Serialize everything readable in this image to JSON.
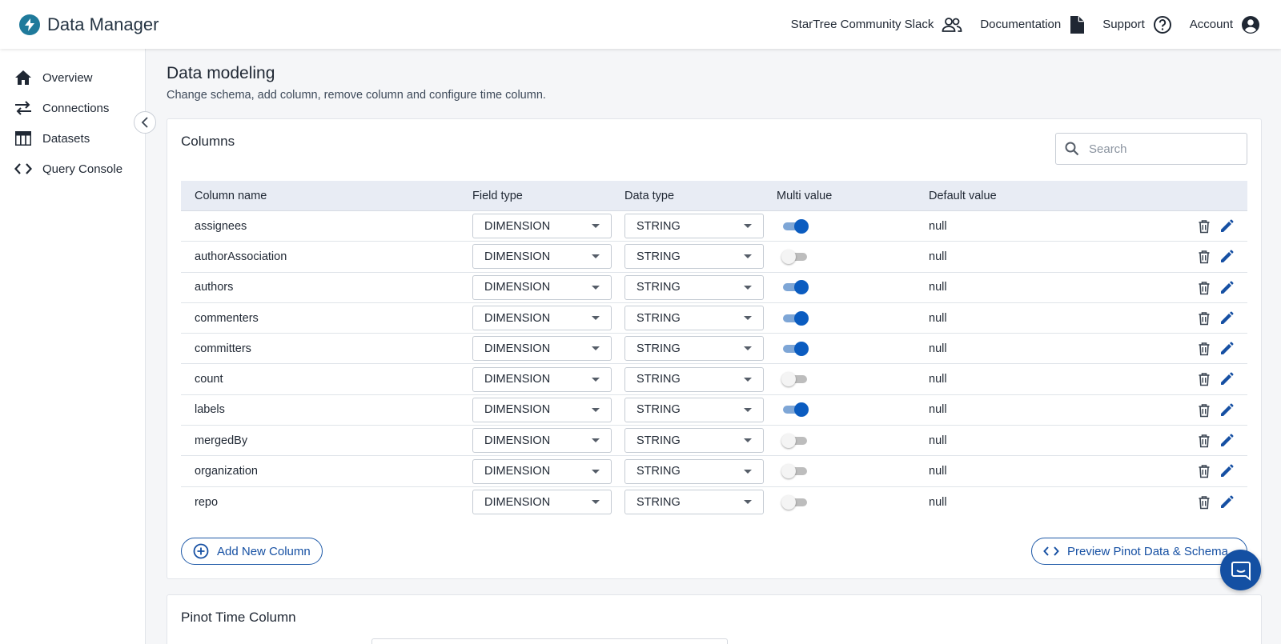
{
  "header": {
    "title": "Data Manager",
    "links": {
      "slack": "StarTree Community Slack",
      "docs": "Documentation",
      "support": "Support",
      "account": "Account"
    }
  },
  "sidebar": {
    "items": [
      {
        "label": "Overview",
        "icon": "home-icon"
      },
      {
        "label": "Connections",
        "icon": "swap-arrows-icon"
      },
      {
        "label": "Datasets",
        "icon": "table-icon"
      },
      {
        "label": "Query Console",
        "icon": "code-icon"
      }
    ]
  },
  "page": {
    "title": "Data modeling",
    "subtitle": "Change schema, add column, remove column and configure time column."
  },
  "columns_card": {
    "title": "Columns",
    "search_placeholder": "Search",
    "headers": {
      "name": "Column name",
      "field_type": "Field type",
      "data_type": "Data type",
      "multi_value": "Multi value",
      "default_value": "Default value"
    },
    "rows": [
      {
        "name": "assignees",
        "field_type": "DIMENSION",
        "data_type": "STRING",
        "multi_value": true,
        "default": "null"
      },
      {
        "name": "authorAssociation",
        "field_type": "DIMENSION",
        "data_type": "STRING",
        "multi_value": false,
        "default": "null"
      },
      {
        "name": "authors",
        "field_type": "DIMENSION",
        "data_type": "STRING",
        "multi_value": true,
        "default": "null"
      },
      {
        "name": "commenters",
        "field_type": "DIMENSION",
        "data_type": "STRING",
        "multi_value": true,
        "default": "null"
      },
      {
        "name": "committers",
        "field_type": "DIMENSION",
        "data_type": "STRING",
        "multi_value": true,
        "default": "null"
      },
      {
        "name": "count",
        "field_type": "DIMENSION",
        "data_type": "STRING",
        "multi_value": false,
        "default": "null"
      },
      {
        "name": "labels",
        "field_type": "DIMENSION",
        "data_type": "STRING",
        "multi_value": true,
        "default": "null"
      },
      {
        "name": "mergedBy",
        "field_type": "DIMENSION",
        "data_type": "STRING",
        "multi_value": false,
        "default": "null"
      },
      {
        "name": "organization",
        "field_type": "DIMENSION",
        "data_type": "STRING",
        "multi_value": false,
        "default": "null"
      },
      {
        "name": "repo",
        "field_type": "DIMENSION",
        "data_type": "STRING",
        "multi_value": false,
        "default": "null"
      }
    ],
    "add_button": "Add New Column",
    "preview_button": "Preview Pinot Data & Schema"
  },
  "time_card": {
    "title": "Pinot Time Column"
  },
  "colors": {
    "accent": "#0b5cc0",
    "brand": "#1f7a9b",
    "header_bg": "#e8ecf4"
  }
}
